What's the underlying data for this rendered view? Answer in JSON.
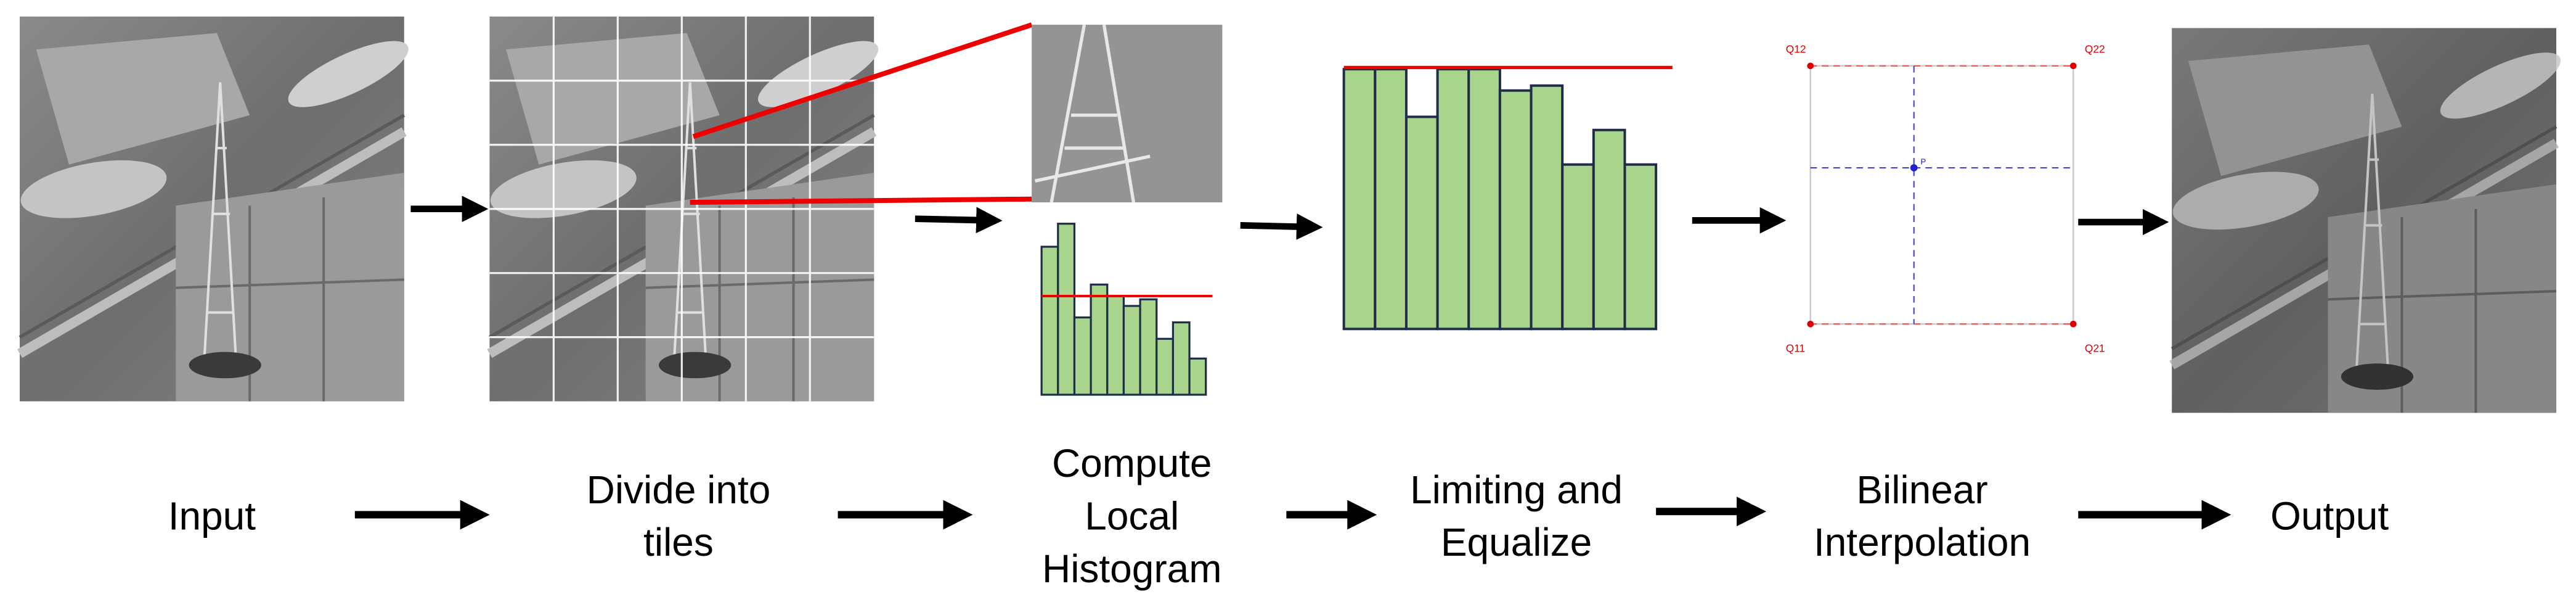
{
  "steps": [
    {
      "label": [
        "Input"
      ]
    },
    {
      "label": [
        "Divide into",
        "tiles"
      ]
    },
    {
      "label": [
        "Compute",
        "Local",
        "Histogram"
      ]
    },
    {
      "label": [
        "Limiting and",
        "Equalize"
      ]
    },
    {
      "label": [
        "Bilinear",
        "Interpolation"
      ]
    },
    {
      "label": [
        "Output"
      ]
    }
  ],
  "interpolation": {
    "points": {
      "q12": "Q12",
      "q22": "Q22",
      "q11": "Q11",
      "q21": "Q21",
      "p": "P"
    }
  }
}
